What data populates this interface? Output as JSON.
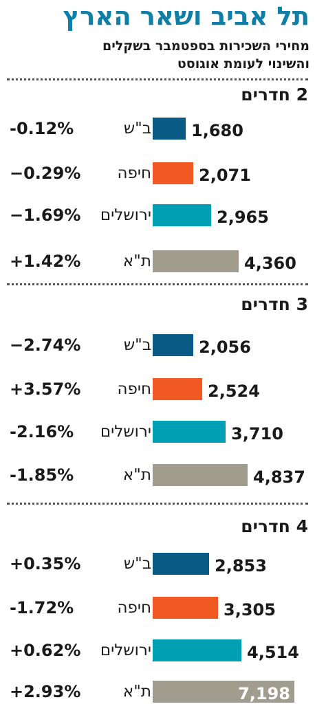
{
  "title": "תל אביב ושאר הארץ",
  "subtitle_line1": "מחירי השכירות בספטמבר בשקלים",
  "subtitle_line2": "והשינוי לעומת אוגוסט",
  "colors": {
    "beer_sheva": "#0a5a86",
    "haifa": "#f05a22",
    "jerusalem": "#00a0b4",
    "tel_aviv": "#a09d8f"
  },
  "chart_data": {
    "type": "bar",
    "cities": [
      "ב\"ש",
      "חיפה",
      "ירושלים",
      "ת\"א"
    ],
    "groups": [
      {
        "label": "2 חדרים",
        "values": [
          1680,
          2071,
          2965,
          4360
        ],
        "labels": [
          "1,680",
          "2,071",
          "2,965",
          "4,360"
        ],
        "changes": [
          "-0.12%",
          "−0.29%",
          "−1.69%",
          "+1.42%"
        ]
      },
      {
        "label": "3 חדרים",
        "values": [
          2056,
          2524,
          3710,
          4837
        ],
        "labels": [
          "2,056",
          "2,524",
          "3,710",
          "4,837"
        ],
        "changes": [
          "−2.74%",
          "+3.57%",
          "-2.16%",
          "-1.85%"
        ]
      },
      {
        "label": "4 חדרים",
        "values": [
          2853,
          3305,
          4514,
          7198
        ],
        "labels": [
          "2,853",
          "3,305",
          "4,514",
          "7,198"
        ],
        "changes": [
          "+0.35%",
          "-1.72%",
          "+0.62%",
          "+2.93%"
        ]
      }
    ],
    "xlim": [
      0,
      7198
    ]
  }
}
